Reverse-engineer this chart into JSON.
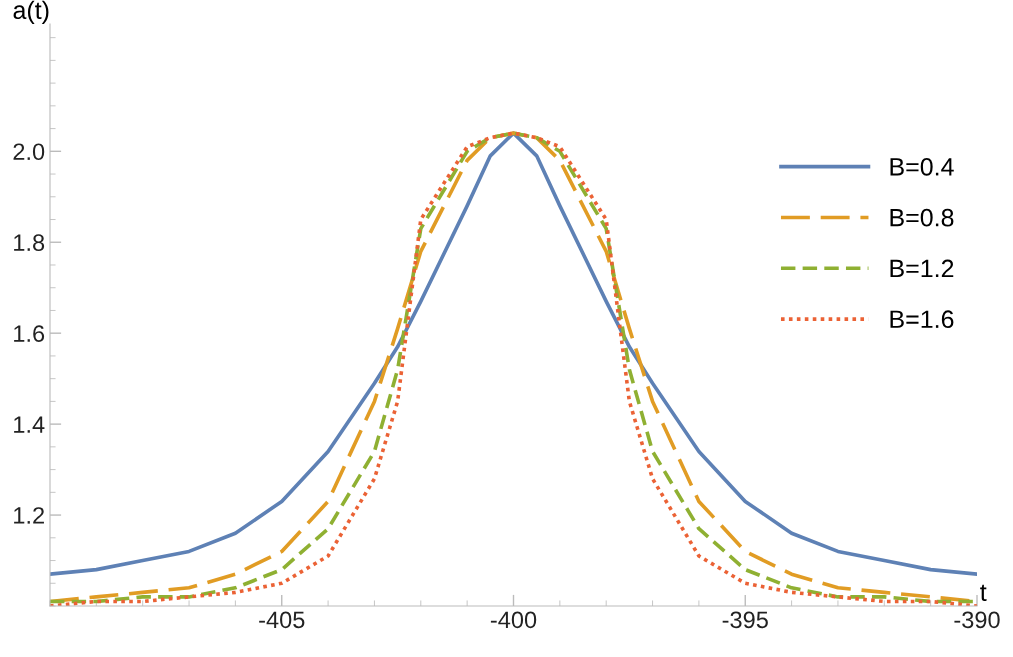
{
  "chart_data": {
    "type": "line",
    "xlabel": "t",
    "ylabel": "a(t)",
    "xlim": [
      -410,
      -390
    ],
    "ylim": [
      1.0,
      2.28
    ],
    "xticks": [
      -405,
      -400,
      -395,
      -390
    ],
    "yticks": [
      {
        "value": 1.2,
        "label": "1.2"
      },
      {
        "value": 1.4,
        "label": "1.4"
      },
      {
        "value": 1.6,
        "label": "1.6"
      },
      {
        "value": 1.8,
        "label": "1.8"
      },
      {
        "value": 2.0,
        "label": "2.0"
      }
    ],
    "grid": false,
    "legend": "right",
    "marker": "none",
    "x": [
      -410,
      -409,
      -408,
      -407,
      -406,
      -405,
      -404,
      -403,
      -402.5,
      -402,
      -401,
      -400.5,
      -400,
      -399.5,
      -399,
      -398,
      -397.5,
      -397,
      -396,
      -395,
      -394,
      -393,
      -392,
      -391,
      -390
    ],
    "series": [
      {
        "name": "B=0.4",
        "color": "#5e81b5",
        "line_style": "solid",
        "values": [
          1.07,
          1.08,
          1.1,
          1.12,
          1.16,
          1.23,
          1.34,
          1.49,
          1.57,
          1.67,
          1.88,
          1.99,
          2.04,
          1.99,
          1.88,
          1.67,
          1.57,
          1.49,
          1.34,
          1.23,
          1.16,
          1.12,
          1.1,
          1.08,
          1.07
        ]
      },
      {
        "name": "B=0.8",
        "color": "#e19c24",
        "line_style": "longdash",
        "values": [
          1.01,
          1.02,
          1.03,
          1.04,
          1.07,
          1.12,
          1.23,
          1.45,
          1.61,
          1.78,
          1.98,
          2.03,
          2.04,
          2.03,
          1.98,
          1.78,
          1.61,
          1.45,
          1.23,
          1.12,
          1.07,
          1.04,
          1.03,
          1.02,
          1.01
        ]
      },
      {
        "name": "B=1.2",
        "color": "#8fb032",
        "line_style": "dashed",
        "values": [
          1.01,
          1.01,
          1.02,
          1.02,
          1.04,
          1.08,
          1.17,
          1.34,
          1.52,
          1.83,
          2.0,
          2.03,
          2.04,
          2.03,
          2.0,
          1.83,
          1.52,
          1.34,
          1.17,
          1.08,
          1.04,
          1.02,
          1.02,
          1.01,
          1.01
        ]
      },
      {
        "name": "B=1.6",
        "color": "#eb6235",
        "line_style": "dotted",
        "values": [
          1.0,
          1.01,
          1.01,
          1.02,
          1.03,
          1.05,
          1.11,
          1.28,
          1.45,
          1.85,
          2.01,
          2.03,
          2.04,
          2.03,
          2.01,
          1.85,
          1.45,
          1.28,
          1.11,
          1.05,
          1.03,
          1.02,
          1.01,
          1.01,
          1.0
        ]
      }
    ]
  }
}
